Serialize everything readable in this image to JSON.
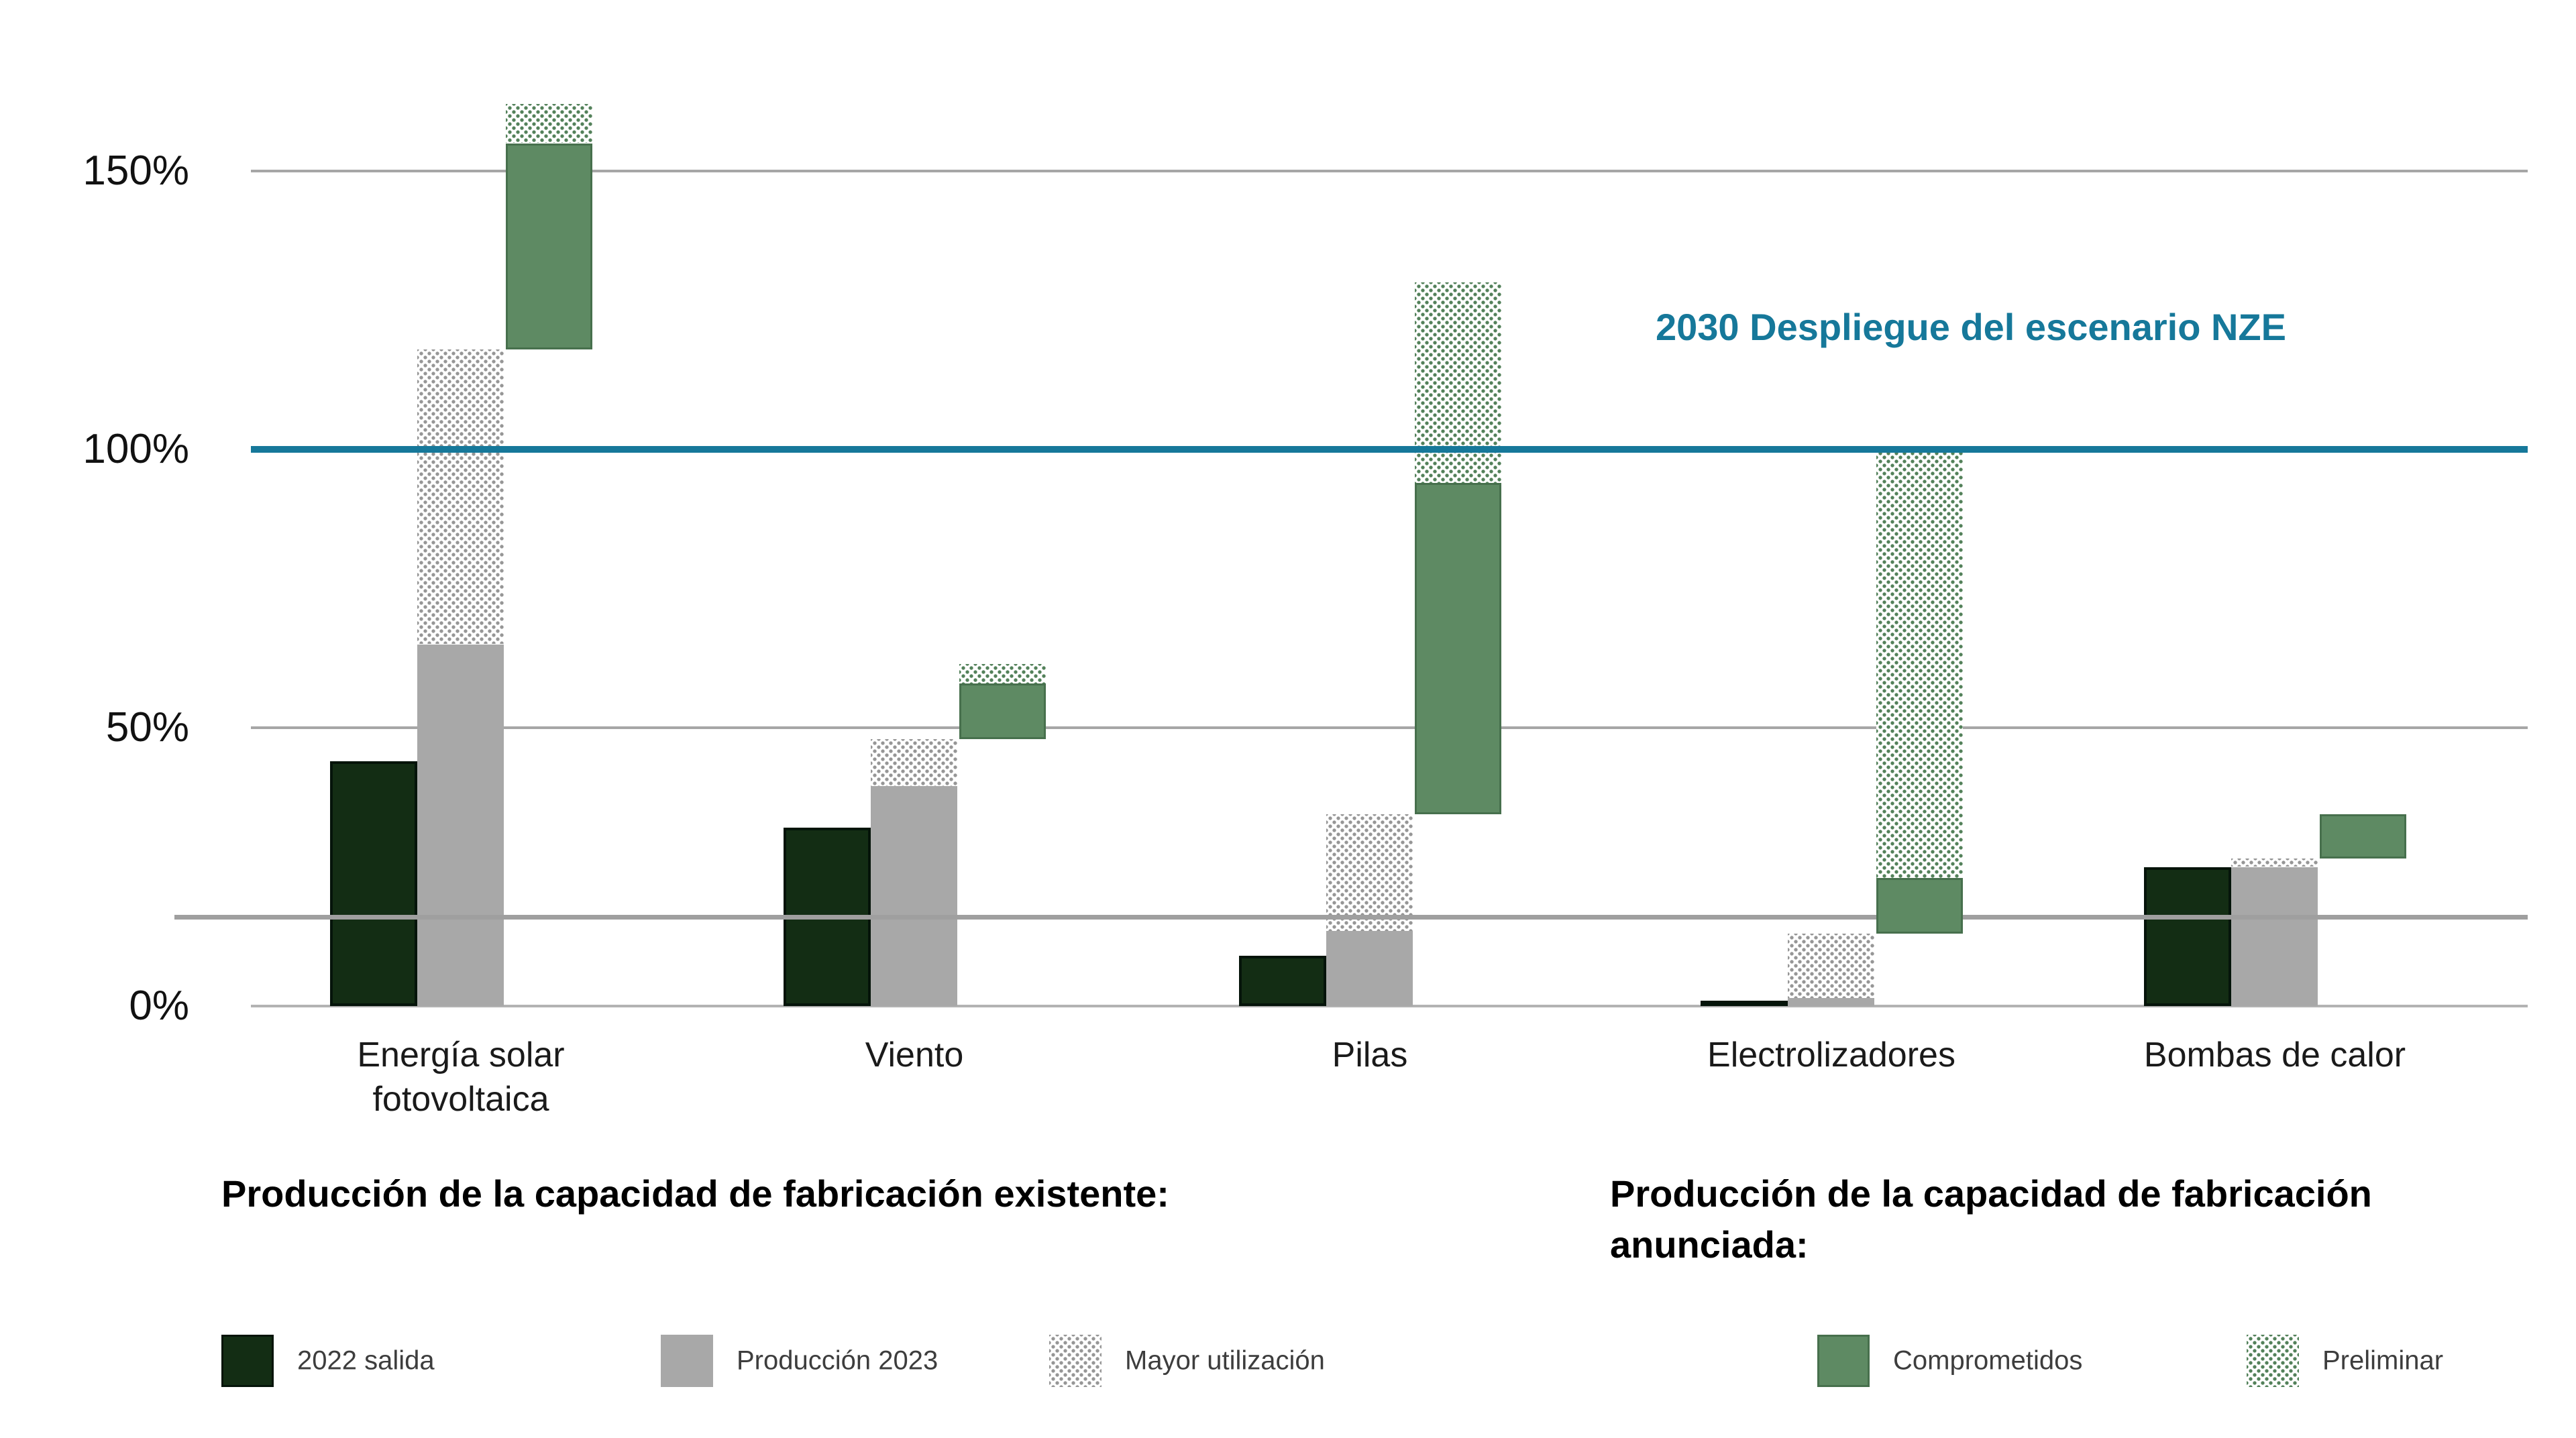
{
  "chart_data": {
    "type": "bar",
    "title": "",
    "unit": "%",
    "ylim": [
      0,
      170
    ],
    "grid": "horizontal",
    "y_axis": {
      "tick_labels": [
        "0%",
        "50%",
        "100%",
        "150%"
      ],
      "tick_values": [
        0,
        50,
        100,
        150
      ]
    },
    "minor_line_value": 16,
    "reference_line": {
      "value": 100,
      "label": "2030 Despliegue del escenario NZE",
      "color": "#16789a"
    },
    "categories": [
      "Energía solar fotovoltaica",
      "Viento",
      "Pilas",
      "Electrolizadores",
      "Bombas de calor"
    ],
    "series": [
      {
        "name": "2022 salida",
        "slot": "output2022",
        "style": "solid-darkgreen",
        "segments": [
          [
            0,
            44
          ],
          [
            0,
            32
          ],
          [
            0,
            9
          ],
          [
            0,
            1
          ],
          [
            0,
            25
          ]
        ]
      },
      {
        "name": "Producción 2023",
        "slot": "production",
        "style": "solid-gray",
        "segments": [
          [
            0,
            65
          ],
          [
            0,
            39.5
          ],
          [
            0,
            13.5
          ],
          [
            0,
            1.5
          ],
          [
            0,
            25
          ]
        ]
      },
      {
        "name": "Mayor utilización",
        "slot": "production",
        "style": "dotted-gray",
        "segments": [
          [
            65,
            118
          ],
          [
            39.5,
            48
          ],
          [
            13.5,
            34.5
          ],
          [
            1.5,
            13
          ],
          [
            25,
            26.5
          ]
        ]
      },
      {
        "name": "Comprometidos",
        "slot": "announced",
        "style": "solid-green",
        "segments": [
          [
            118,
            155
          ],
          [
            48,
            58
          ],
          [
            34.5,
            94
          ],
          [
            13,
            23
          ],
          [
            26.5,
            34.5
          ]
        ]
      },
      {
        "name": "Preliminar",
        "slot": "announced",
        "style": "dotted-green",
        "segments": [
          [
            155,
            162
          ],
          [
            58,
            61.5
          ],
          [
            94,
            130
          ],
          [
            23,
            100
          ],
          [
            34.5,
            34.5
          ]
        ]
      }
    ],
    "legend_position": "bottom"
  },
  "annotation": {
    "nze_label": "2030 Despliegue del escenario NZE"
  },
  "legend_groups": [
    {
      "heading": "Producción de la capacidad de fabricación existente:",
      "items": [
        {
          "label": "2022 salida",
          "style": "solid-darkgreen"
        },
        {
          "label": "Producción 2023",
          "style": "solid-gray"
        },
        {
          "label": "Mayor utilización",
          "style": "dotted-gray"
        }
      ]
    },
    {
      "heading": "Producción de la capacidad de fabricación anunciada:",
      "items": [
        {
          "label": "Comprometidos",
          "style": "solid-green"
        },
        {
          "label": "Preliminar",
          "style": "dotted-green"
        }
      ]
    }
  ],
  "colors": {
    "dark_green": "#132d14",
    "dark_green_border": "#05140a",
    "gray": "#a8a8a8",
    "dot_gray": "#969696",
    "green": "#5e8a63",
    "green_border": "#47704d",
    "dot_green": "#53815a",
    "teal": "#16789a",
    "gridline": "#a6a6a6",
    "baseline": "#b3b3b3",
    "text": "#111111"
  }
}
